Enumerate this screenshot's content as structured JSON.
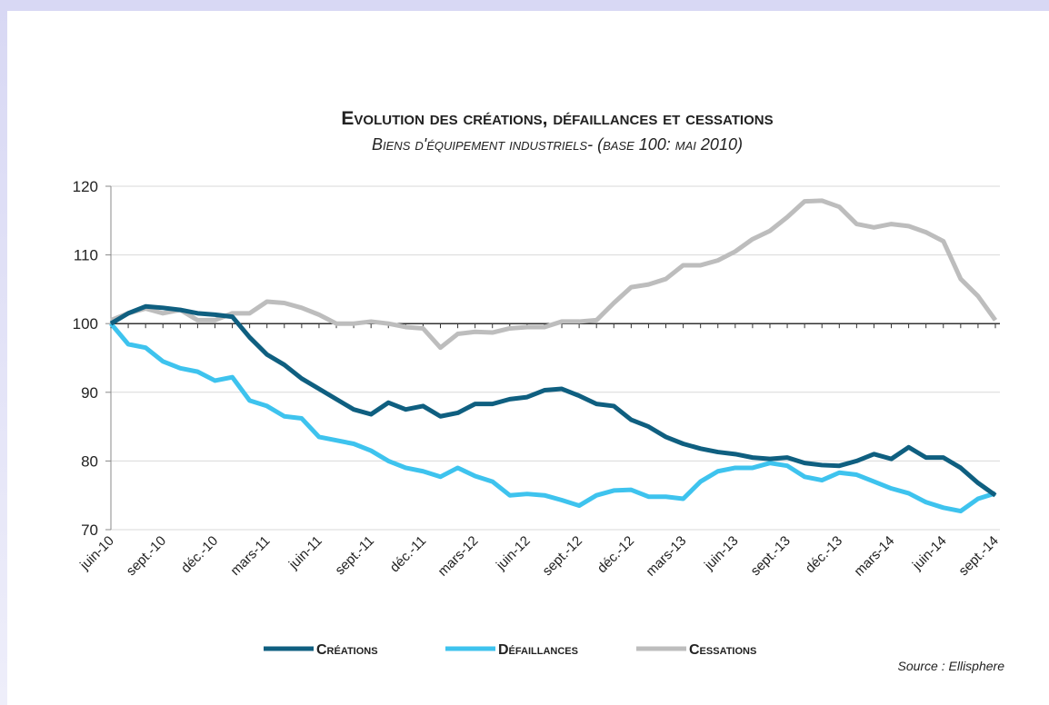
{
  "chart_data": {
    "type": "line",
    "title": "Evolution des créations, défaillances et cessations",
    "subtitle": "Biens d'équipement industriels- (base 100: mai 2010)",
    "source": "Source : Ellisphere",
    "categories": [
      "juin-10",
      null,
      null,
      "sept.-10",
      null,
      null,
      "déc.-10",
      null,
      null,
      "mars-11",
      null,
      null,
      "juin-11",
      null,
      null,
      "sept.-11",
      null,
      null,
      "déc.-11",
      null,
      null,
      "mars-12",
      null,
      null,
      "juin-12",
      null,
      null,
      "sept.-12",
      null,
      null,
      "déc.-12",
      null,
      null,
      "mars-13",
      null,
      null,
      "juin-13",
      null,
      null,
      "sept.-13",
      null,
      null,
      "déc.-13",
      null,
      null,
      "mars-14",
      null,
      null,
      "juin-14",
      null,
      null,
      "sept.-14"
    ],
    "series": [
      {
        "name": "Créations",
        "color": "#0f5f80",
        "values": [
          100,
          101.5,
          102.5,
          102.3,
          102,
          101.5,
          101.3,
          101,
          98,
          95.5,
          94,
          92,
          90.5,
          89,
          87.5,
          86.8,
          88.5,
          87.5,
          88,
          86.5,
          87,
          88.3,
          88.3,
          89,
          89.3,
          90.3,
          90.5,
          89.5,
          88.3,
          88,
          86,
          85,
          83.5,
          82.5,
          81.8,
          81.3,
          81,
          80.5,
          80.3,
          80.5,
          79.7,
          79.4,
          79.3,
          80,
          81,
          80.3,
          82,
          80.5,
          80.5,
          79,
          76.8,
          75
        ]
      },
      {
        "name": "Défaillances",
        "color": "#3ec3ee",
        "values": [
          100,
          97,
          96.5,
          94.5,
          93.5,
          93,
          91.7,
          92.2,
          88.8,
          88,
          86.5,
          86.2,
          83.5,
          83,
          82.5,
          81.5,
          80,
          79,
          78.5,
          77.7,
          79,
          77.8,
          77,
          75,
          75.2,
          75,
          74.3,
          73.5,
          75,
          75.7,
          75.8,
          74.8,
          74.8,
          74.5,
          77,
          78.5,
          79,
          79,
          79.7,
          79.3,
          77.7,
          77.2,
          78.3,
          78,
          77,
          76,
          75.3,
          74,
          73.2,
          72.7,
          74.5,
          75.3
        ]
      },
      {
        "name": "Cessations",
        "color": "#bdbdbd",
        "values": [
          100.5,
          101.5,
          102.2,
          101.5,
          102,
          100.5,
          100.5,
          101.5,
          101.5,
          103.2,
          103,
          102.3,
          101.3,
          100,
          100,
          100.3,
          100,
          99.5,
          99.3,
          96.5,
          98.5,
          98.8,
          98.7,
          99.3,
          99.5,
          99.5,
          100.3,
          100.3,
          100.5,
          103,
          105.3,
          105.7,
          106.5,
          108.5,
          108.5,
          109.2,
          110.5,
          112.3,
          113.5,
          115.5,
          117.8,
          117.9,
          117,
          114.5,
          114,
          114.5,
          114.2,
          113.3,
          112,
          106.5,
          104,
          100.5
        ]
      }
    ],
    "ylim": [
      70,
      120
    ],
    "yticks": [
      70,
      80,
      90,
      100,
      110,
      120
    ],
    "grid": true,
    "xaxis_crosses": 100,
    "legend": "bottom"
  }
}
